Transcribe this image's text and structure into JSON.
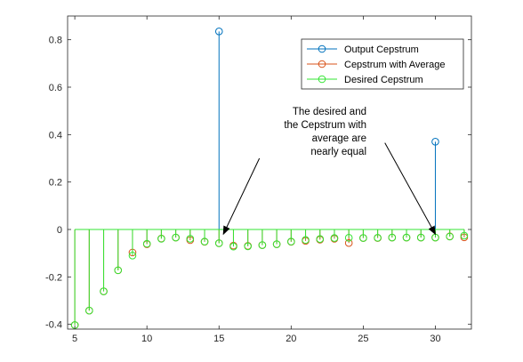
{
  "chart_data": {
    "type": "stem",
    "xlim": [
      4.5,
      32.5
    ],
    "ylim": [
      -0.42,
      0.9
    ],
    "xticks": [
      5,
      10,
      15,
      20,
      25,
      30
    ],
    "yticks": [
      -0.4,
      -0.2,
      0,
      0.2,
      0.4,
      0.6,
      0.8
    ],
    "xtick_labels": [
      "5",
      "10",
      "15",
      "20",
      "25",
      "30"
    ],
    "ytick_labels": [
      "-0.4",
      "-0.2",
      "0",
      "0.2",
      "0.4",
      "0.6",
      "0.8"
    ],
    "grid": false,
    "legend_position": "top-right",
    "series": [
      {
        "name": "Output Cepstrum",
        "color": "#0072BD",
        "x": [
          15,
          30
        ],
        "values": [
          0.835,
          0.37
        ]
      },
      {
        "name": "Cepstrum with Average",
        "color": "#D95319",
        "x": [
          5,
          6,
          7,
          8,
          9,
          10,
          11,
          12,
          13,
          14,
          15,
          16,
          17,
          18,
          19,
          20,
          21,
          22,
          23,
          24,
          25,
          26,
          27,
          28,
          29,
          30,
          31,
          32
        ],
        "values": [
          -0.403,
          -0.342,
          -0.261,
          -0.172,
          -0.097,
          -0.062,
          -0.038,
          -0.034,
          -0.045,
          -0.052,
          -0.058,
          -0.068,
          -0.069,
          -0.066,
          -0.062,
          -0.052,
          -0.048,
          -0.043,
          -0.039,
          -0.057,
          -0.036,
          -0.036,
          -0.034,
          -0.034,
          -0.034,
          -0.034,
          -0.029,
          -0.033
        ]
      },
      {
        "name": "Desired Cepstrum",
        "color": "#33E533",
        "x": [
          5,
          6,
          7,
          8,
          9,
          10,
          11,
          12,
          13,
          14,
          15,
          16,
          17,
          18,
          19,
          20,
          21,
          22,
          23,
          24,
          25,
          26,
          27,
          28,
          29,
          30,
          31,
          32
        ],
        "values": [
          -0.403,
          -0.342,
          -0.261,
          -0.172,
          -0.11,
          -0.06,
          -0.039,
          -0.034,
          -0.039,
          -0.051,
          -0.058,
          -0.072,
          -0.071,
          -0.066,
          -0.062,
          -0.051,
          -0.044,
          -0.04,
          -0.036,
          -0.035,
          -0.036,
          -0.035,
          -0.034,
          -0.034,
          -0.034,
          -0.034,
          -0.03,
          -0.026
        ]
      }
    ],
    "annotations": [
      {
        "lines": [
          "The desired and",
          "the Cepstrum with",
          "average are",
          "nearly equal"
        ],
        "arrows": [
          {
            "from": [
              17.8,
              0.3
            ],
            "to": [
              15.3,
              -0.02
            ]
          },
          {
            "from": [
              26.5,
              0.365
            ],
            "to": [
              30.0,
              -0.02
            ]
          }
        ]
      }
    ]
  }
}
